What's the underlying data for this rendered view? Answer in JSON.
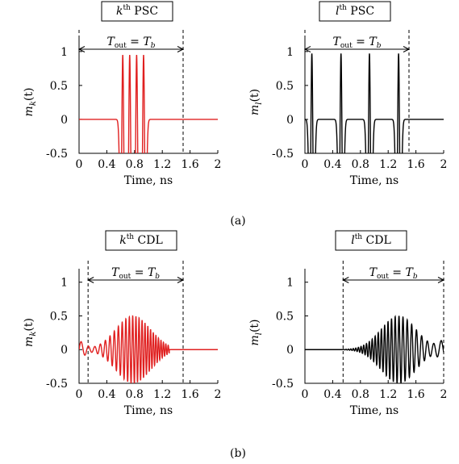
{
  "figure": {
    "caption_a": "(a)",
    "caption_b": "(b)"
  },
  "chart_data": [
    {
      "type": "line",
      "panel": "top-left",
      "title_italic": "k",
      "title_sup": "th",
      "title_rest": " PSC",
      "xlabel": "Time, ns",
      "ylabel_func": "m",
      "ylabel_sub": "k",
      "ylabel_arg": "(t)",
      "xlim": [
        0,
        2
      ],
      "ylim": [
        -0.5,
        1.2
      ],
      "xticks": [
        "0",
        "0.4",
        "0.8",
        "1.2",
        "1.6",
        "2"
      ],
      "xtick_values": [
        0,
        0.4,
        0.8,
        1.2,
        1.6,
        2
      ],
      "yticks": [
        "-0.5",
        "0",
        "0.5",
        "1"
      ],
      "ytick_values": [
        -0.5,
        0,
        0.5,
        1
      ],
      "annotation": {
        "t_left": 0,
        "t_right": 1.5,
        "label_main": "T",
        "label_sub": "out",
        "label_eq": " = ",
        "label_rhs": "T",
        "label_rhs_sub": "b"
      },
      "series": [
        {
          "color": "#e02020",
          "waveform": "pulse_train",
          "pulse_centers": [
            0.63,
            0.73,
            0.83,
            0.93
          ],
          "pulse_peak": 0.95,
          "pulse_width": 0.022
        }
      ]
    },
    {
      "type": "line",
      "panel": "top-right",
      "title_italic": "l",
      "title_sup": "th",
      "title_rest": " PSC",
      "xlabel": "Time, ns",
      "ylabel_func": "m",
      "ylabel_sub": "l",
      "ylabel_arg": "(t)",
      "xlim": [
        0,
        2
      ],
      "ylim": [
        -0.5,
        1.2
      ],
      "xticks": [
        "0",
        "0.4",
        "0.8",
        "1.2",
        "1.6",
        "2"
      ],
      "xtick_values": [
        0,
        0.4,
        0.8,
        1.2,
        1.6,
        2
      ],
      "yticks": [
        "-0.5",
        "0",
        "0.5",
        "1"
      ],
      "ytick_values": [
        -0.5,
        0,
        0.5,
        1
      ],
      "annotation": {
        "t_left": 0,
        "t_right": 1.5,
        "label_main": "T",
        "label_sub": "out",
        "label_eq": " = ",
        "label_rhs": "T",
        "label_rhs_sub": "b"
      },
      "series": [
        {
          "color": "#000000",
          "waveform": "pulse_train",
          "pulse_centers": [
            0.1,
            0.52,
            0.93,
            1.35
          ],
          "pulse_peak": 0.97,
          "pulse_width": 0.022
        }
      ]
    },
    {
      "type": "line",
      "panel": "bottom-left",
      "title_italic": "k",
      "title_sup": "th",
      "title_rest": " CDL",
      "xlabel": "Time, ns",
      "ylabel_func": "m",
      "ylabel_sub": "k",
      "ylabel_arg": "(t)",
      "xlim": [
        0,
        2
      ],
      "ylim": [
        -0.5,
        1.2
      ],
      "xticks": [
        "0",
        "0.4",
        "0.8",
        "1.2",
        "1.6",
        "2"
      ],
      "xtick_values": [
        0,
        0.4,
        0.8,
        1.2,
        1.6,
        2
      ],
      "yticks": [
        "-0.5",
        "0",
        "0.5",
        "1"
      ],
      "ytick_values": [
        -0.5,
        0,
        0.5,
        1
      ],
      "annotation": {
        "t_left": 0.13,
        "t_right": 1.5,
        "label_main": "T",
        "label_sub": "out",
        "label_eq": " = ",
        "label_rhs": "T",
        "label_rhs_sub": "b"
      },
      "series": [
        {
          "color": "#e02020",
          "waveform": "chirp",
          "center": 0.78,
          "peak": 0.5,
          "sigma": 0.25,
          "t_start": 0.0,
          "t_end": 1.3,
          "f_start": 8,
          "f_end": 30
        }
      ]
    },
    {
      "type": "line",
      "panel": "bottom-right",
      "title_italic": "l",
      "title_sup": "th",
      "title_rest": " CDL",
      "xlabel": "Time, ns",
      "ylabel_func": "m",
      "ylabel_sub": "l",
      "ylabel_arg": "(t)",
      "xlim": [
        0,
        2
      ],
      "ylim": [
        -0.5,
        1.2
      ],
      "xticks": [
        "0",
        "0.4",
        "0.8",
        "1.2",
        "1.6",
        "2"
      ],
      "xtick_values": [
        0,
        0.4,
        0.8,
        1.2,
        1.6,
        2
      ],
      "yticks": [
        "-0.5",
        "0",
        "0.5",
        "1"
      ],
      "ytick_values": [
        -0.5,
        0,
        0.5,
        1
      ],
      "annotation": {
        "t_left": 0.55,
        "t_right": 2.0,
        "label_main": "T",
        "label_sub": "out",
        "label_eq": " = ",
        "label_rhs": "T",
        "label_rhs_sub": "b"
      },
      "series": [
        {
          "color": "#000000",
          "waveform": "chirp_reverse",
          "center": 1.35,
          "peak": 0.5,
          "sigma": 0.25,
          "t_start": 0.55,
          "t_end": 2.0,
          "f_start": 30,
          "f_end": 8
        }
      ]
    }
  ]
}
